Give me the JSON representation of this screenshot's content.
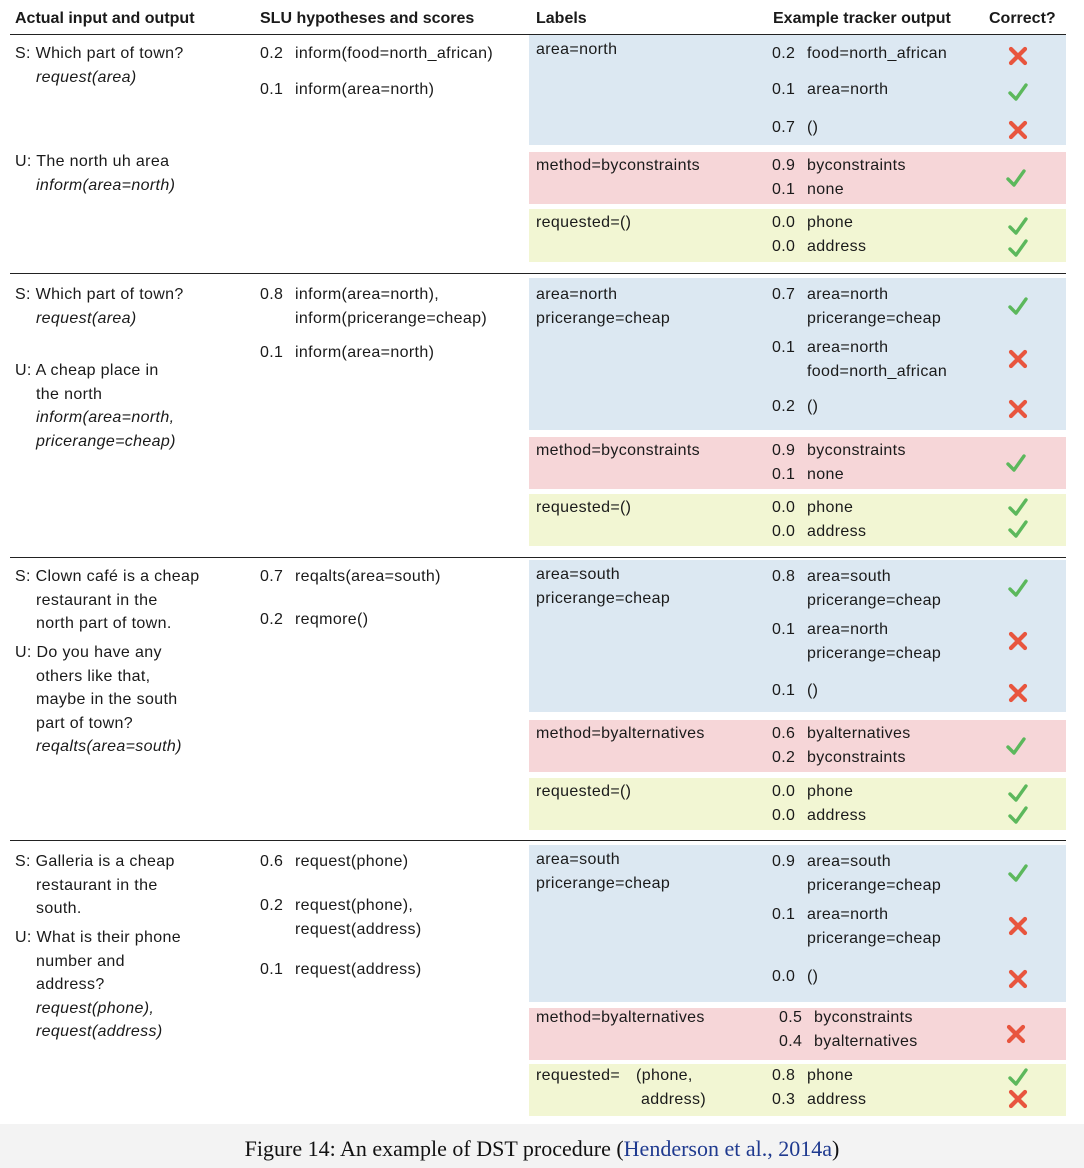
{
  "headers": {
    "actual": "Actual input and output",
    "slu": "SLU hypotheses and scores",
    "labels": "Labels",
    "tracker": "Example tracker output",
    "correct": "Correct?"
  },
  "turns": [
    {
      "system": [
        "S: Which part of town?",
        "request(area)"
      ],
      "user": [
        "U: The north uh area",
        "inform(area=north)"
      ],
      "slu": [
        {
          "score": "0.2",
          "lines": [
            "inform(food=north_african)"
          ]
        },
        {
          "score": "0.1",
          "lines": [
            "inform(area=north)"
          ]
        }
      ],
      "goal_label": [
        "area=north"
      ],
      "goal_output": [
        {
          "score": "0.2",
          "lines": [
            "food=north_african"
          ],
          "correct": false
        },
        {
          "score": "0.1",
          "lines": [
            "area=north"
          ],
          "correct": true
        },
        {
          "score": "0.7",
          "lines": [
            "()"
          ],
          "correct": false
        }
      ],
      "method_label": "method=byconstraints",
      "method_output": [
        {
          "score": "0.9",
          "text": "byconstraints"
        },
        {
          "score": "0.1",
          "text": "none"
        }
      ],
      "method_correct": true,
      "requested_label": [
        "requested=()"
      ],
      "requested_output": [
        {
          "score": "0.0",
          "text": "phone",
          "correct": true
        },
        {
          "score": "0.0",
          "text": "address",
          "correct": true
        }
      ]
    },
    {
      "system": [
        "S: Which part of town?",
        "request(area)"
      ],
      "user": [
        "U: A cheap place in",
        "the north",
        "inform(area=north,",
        "pricerange=cheap)"
      ],
      "slu": [
        {
          "score": "0.8",
          "lines": [
            "inform(area=north),",
            "inform(pricerange=cheap)"
          ]
        },
        {
          "score": "0.1",
          "lines": [
            "inform(area=north)"
          ]
        }
      ],
      "goal_label": [
        "area=north",
        "pricerange=cheap"
      ],
      "goal_output": [
        {
          "score": "0.7",
          "lines": [
            "area=north",
            "pricerange=cheap"
          ],
          "correct": true
        },
        {
          "score": "0.1",
          "lines": [
            "area=north",
            "food=north_african"
          ],
          "correct": false
        },
        {
          "score": "0.2",
          "lines": [
            "()"
          ],
          "correct": false
        }
      ],
      "method_label": "method=byconstraints",
      "method_output": [
        {
          "score": "0.9",
          "text": "byconstraints"
        },
        {
          "score": "0.1",
          "text": "none"
        }
      ],
      "method_correct": true,
      "requested_label": [
        "requested=()"
      ],
      "requested_output": [
        {
          "score": "0.0",
          "text": "phone",
          "correct": true
        },
        {
          "score": "0.0",
          "text": "address",
          "correct": true
        }
      ]
    },
    {
      "system": [
        "S: Clown café is a cheap",
        "restaurant in the",
        "north part of town."
      ],
      "user": [
        "U: Do you have any",
        "others like that,",
        "maybe in the south",
        "part of town?",
        "reqalts(area=south)"
      ],
      "slu": [
        {
          "score": "0.7",
          "lines": [
            "reqalts(area=south)"
          ]
        },
        {
          "score": "0.2",
          "lines": [
            "reqmore()"
          ]
        }
      ],
      "goal_label": [
        "area=south",
        "pricerange=cheap"
      ],
      "goal_output": [
        {
          "score": "0.8",
          "lines": [
            "area=south",
            "pricerange=cheap"
          ],
          "correct": true
        },
        {
          "score": "0.1",
          "lines": [
            "area=north",
            "pricerange=cheap"
          ],
          "correct": false
        },
        {
          "score": "0.1",
          "lines": [
            "()"
          ],
          "correct": false
        }
      ],
      "method_label": "method=byalternatives",
      "method_output": [
        {
          "score": "0.6",
          "text": "byalternatives"
        },
        {
          "score": "0.2",
          "text": "byconstraints"
        }
      ],
      "method_correct": true,
      "requested_label": [
        "requested=()"
      ],
      "requested_output": [
        {
          "score": "0.0",
          "text": "phone",
          "correct": true
        },
        {
          "score": "0.0",
          "text": "address",
          "correct": true
        }
      ]
    },
    {
      "system": [
        "S: Galleria is a cheap",
        "restaurant in the",
        "south."
      ],
      "user": [
        "U: What is their phone",
        "number and",
        "address?",
        "request(phone),",
        "request(address)"
      ],
      "slu": [
        {
          "score": "0.6",
          "lines": [
            "request(phone)"
          ]
        },
        {
          "score": "0.2",
          "lines": [
            "request(phone),",
            "request(address)"
          ]
        },
        {
          "score": "0.1",
          "lines": [
            "request(address)"
          ]
        }
      ],
      "goal_label": [
        "area=south",
        "pricerange=cheap"
      ],
      "goal_output": [
        {
          "score": "0.9",
          "lines": [
            "area=south",
            "pricerange=cheap"
          ],
          "correct": true
        },
        {
          "score": "0.1",
          "lines": [
            "area=north",
            "pricerange=cheap"
          ],
          "correct": false
        },
        {
          "score": "0.0",
          "lines": [
            "()"
          ],
          "correct": false
        }
      ],
      "method_label": "method=byalternatives",
      "method_output": [
        {
          "score": "0.5",
          "text": "byconstraints"
        },
        {
          "score": "0.4",
          "text": "byalternatives"
        }
      ],
      "method_correct": false,
      "requested_label": [
        "requested=",
        "(phone,",
        "address)"
      ],
      "requested_output": [
        {
          "score": "0.8",
          "text": "phone",
          "correct": true
        },
        {
          "score": "0.3",
          "text": "address",
          "correct": false
        }
      ]
    }
  ],
  "caption": {
    "prefix": "Figure 14: An example of DST procedure  (",
    "citation": "Henderson et al., 2014a",
    "suffix": ")"
  },
  "colors": {
    "goal_band": "#dce8f2",
    "method_band": "#f6d6d8",
    "requested_band": "#f2f6d3",
    "check": "#5cb85c",
    "cross": "#e8553e",
    "citation": "#1f3a8f"
  }
}
